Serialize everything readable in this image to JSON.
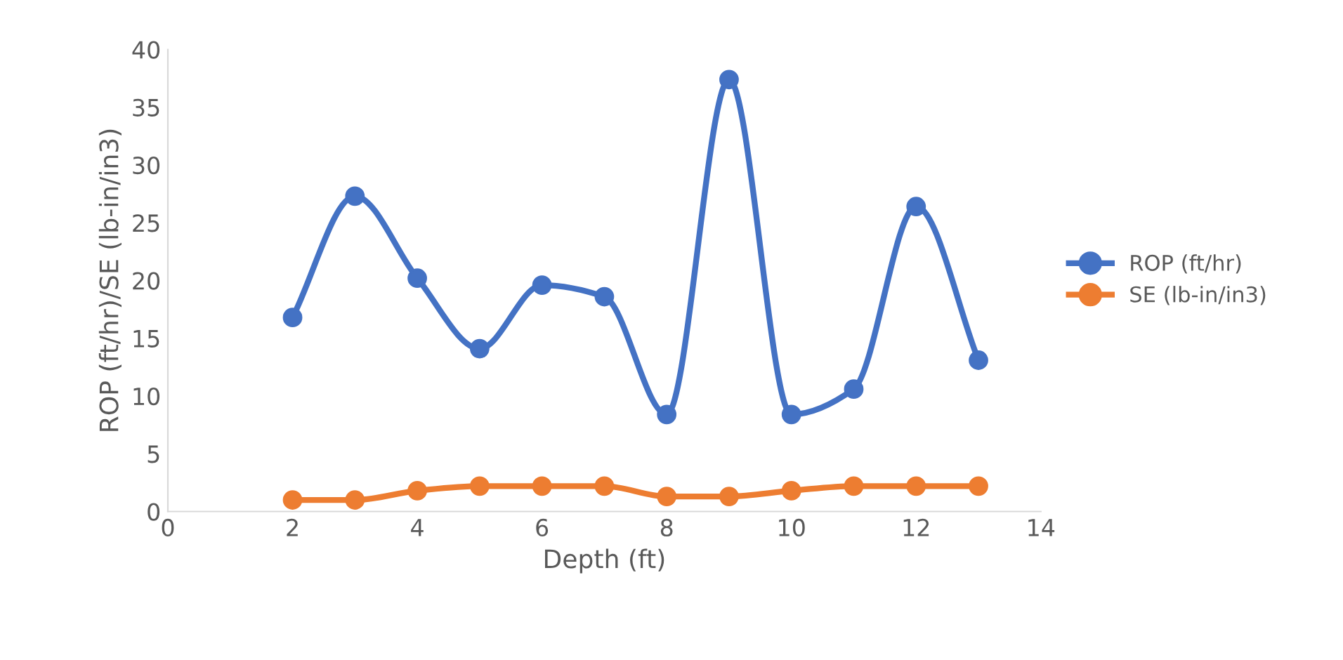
{
  "chart_data": {
    "type": "line",
    "xlabel": "Depth (ft)",
    "ylabel": "ROP (ft/hr)/SE (lb-in/in3)",
    "x": [
      2,
      3,
      4,
      5,
      6,
      7,
      8,
      9,
      10,
      11,
      12,
      13
    ],
    "series": [
      {
        "name": "ROP (ft/hr)",
        "color": "#4472c4",
        "values": [
          16.8,
          27.3,
          20.2,
          14.1,
          19.6,
          18.6,
          8.4,
          37.4,
          8.4,
          10.6,
          26.4,
          13.1
        ]
      },
      {
        "name": "SE (lb-in/in3)",
        "color": "#ed7d31",
        "values": [
          1.0,
          1.0,
          1.8,
          2.2,
          2.2,
          2.2,
          1.3,
          1.3,
          1.8,
          2.2,
          2.2,
          2.2
        ]
      }
    ],
    "xlim": [
      0,
      14
    ],
    "xticks": [
      0,
      2,
      4,
      6,
      8,
      10,
      12,
      14
    ],
    "ylim": [
      0,
      40
    ],
    "yticks": [
      0,
      5,
      10,
      15,
      20,
      25,
      30,
      35,
      40
    ],
    "grid": false,
    "legend": "right",
    "marker": "circle",
    "line_style": "solid"
  }
}
